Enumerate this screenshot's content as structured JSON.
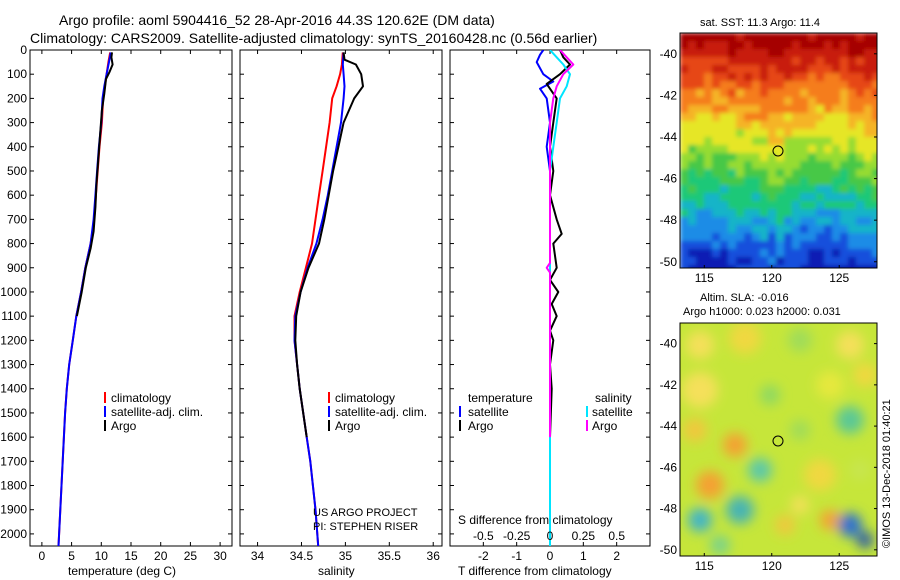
{
  "figure": {
    "title_line1": "Argo profile: aoml 5904416_52 28-Apr-2016 44.3S 120.62E (DM data)",
    "title_line2": "Climatology: CARS2009. Satellite-adjusted climatology: synTS_20160428.nc (0.56d earlier)",
    "credit_line1": "US ARGO PROJECT",
    "credit_line2": "PI: STEPHEN RISER",
    "footer_right": "©IMOS 13-Dec-2018 01:40:21"
  },
  "colors": {
    "climatology": "#ff0000",
    "satellite": "#0000ff",
    "argo": "#000000",
    "sal_satellite": "#00e5ff",
    "sal_argo": "#ff00ff"
  },
  "chart_data": [
    {
      "type": "line",
      "xlabel": "temperature (deg C)",
      "xlim": [
        -2,
        32
      ],
      "xticks": [
        0,
        5,
        10,
        15,
        20,
        25,
        30
      ],
      "xtick_labels": [
        "0",
        "5",
        "10",
        "15",
        "20",
        "25",
        "30"
      ],
      "ylim": [
        2050,
        0
      ],
      "yticks": [
        0,
        100,
        200,
        300,
        400,
        500,
        600,
        700,
        800,
        900,
        1000,
        1100,
        1200,
        1300,
        1400,
        1500,
        1600,
        1700,
        1800,
        1900,
        2000
      ],
      "legend": [
        "climatology",
        "satellite-adj. clim.",
        "Argo"
      ],
      "series": [
        {
          "name": "climatology",
          "color": "#ff0000",
          "points": [
            [
              11.5,
              10
            ],
            [
              11.2,
              50
            ],
            [
              10.9,
              100
            ],
            [
              10.6,
              150
            ],
            [
              10.3,
              200
            ],
            [
              10.1,
              300
            ],
            [
              9.7,
              400
            ],
            [
              9.4,
              500
            ],
            [
              9.1,
              600
            ],
            [
              8.8,
              700
            ],
            [
              8.2,
              800
            ],
            [
              7.3,
              900
            ],
            [
              6.6,
              1000
            ],
            [
              5.8,
              1100
            ],
            [
              5.2,
              1200
            ],
            [
              4.6,
              1300
            ],
            [
              4.2,
              1400
            ],
            [
              3.9,
              1500
            ],
            [
              3.7,
              1600
            ],
            [
              3.5,
              1700
            ],
            [
              3.3,
              1800
            ],
            [
              3.1,
              1900
            ],
            [
              2.9,
              2000
            ],
            [
              2.8,
              2050
            ]
          ]
        },
        {
          "name": "satellite-adj. clim.",
          "color": "#0000ff",
          "points": [
            [
              11.6,
              10
            ],
            [
              11.3,
              50
            ],
            [
              10.9,
              100
            ],
            [
              10.5,
              150
            ],
            [
              10.2,
              200
            ],
            [
              10.0,
              300
            ],
            [
              9.6,
              400
            ],
            [
              9.3,
              500
            ],
            [
              9.0,
              600
            ],
            [
              8.7,
              700
            ],
            [
              8.2,
              800
            ],
            [
              7.3,
              900
            ],
            [
              6.6,
              1000
            ],
            [
              5.8,
              1100
            ],
            [
              5.2,
              1200
            ],
            [
              4.6,
              1300
            ],
            [
              4.2,
              1400
            ],
            [
              3.9,
              1500
            ],
            [
              3.7,
              1600
            ],
            [
              3.5,
              1700
            ],
            [
              3.3,
              1800
            ],
            [
              3.1,
              1900
            ],
            [
              2.9,
              2000
            ],
            [
              2.8,
              2050
            ]
          ]
        },
        {
          "name": "Argo",
          "color": "#000000",
          "points": [
            [
              11.8,
              10
            ],
            [
              11.7,
              30
            ],
            [
              11.9,
              60
            ],
            [
              11.4,
              90
            ],
            [
              10.8,
              120
            ],
            [
              10.5,
              180
            ],
            [
              10.1,
              250
            ],
            [
              9.8,
              350
            ],
            [
              9.5,
              450
            ],
            [
              9.2,
              550
            ],
            [
              9.0,
              650
            ],
            [
              8.7,
              750
            ],
            [
              8.2,
              820
            ],
            [
              7.4,
              900
            ],
            [
              6.7,
              1000
            ],
            [
              5.9,
              1100
            ]
          ]
        }
      ]
    },
    {
      "type": "line",
      "xlabel": "salinity",
      "xlim": [
        33.8,
        36.1
      ],
      "xticks": [
        34,
        34.5,
        35,
        35.5,
        36
      ],
      "xtick_labels": [
        "34",
        "34.5",
        "35",
        "35.5",
        "36"
      ],
      "ylim": [
        2050,
        0
      ],
      "legend": [
        "climatology",
        "satellite-adj. clim.",
        "Argo"
      ],
      "series": [
        {
          "name": "climatology",
          "color": "#ff0000",
          "points": [
            [
              34.97,
              10
            ],
            [
              34.96,
              60
            ],
            [
              34.94,
              100
            ],
            [
              34.9,
              150
            ],
            [
              34.85,
              200
            ],
            [
              34.82,
              300
            ],
            [
              34.78,
              400
            ],
            [
              34.74,
              500
            ],
            [
              34.7,
              600
            ],
            [
              34.66,
              700
            ],
            [
              34.62,
              800
            ],
            [
              34.55,
              900
            ],
            [
              34.48,
              1000
            ],
            [
              34.42,
              1100
            ],
            [
              34.42,
              1200
            ],
            [
              34.45,
              1300
            ],
            [
              34.48,
              1400
            ],
            [
              34.52,
              1500
            ],
            [
              34.56,
              1600
            ],
            [
              34.6,
              1700
            ],
            [
              34.63,
              1800
            ],
            [
              34.66,
              1900
            ],
            [
              34.68,
              2000
            ],
            [
              34.69,
              2050
            ]
          ]
        },
        {
          "name": "satellite-adj. clim.",
          "color": "#0000ff",
          "points": [
            [
              34.98,
              10
            ],
            [
              34.97,
              60
            ],
            [
              34.98,
              100
            ],
            [
              34.99,
              150
            ],
            [
              34.98,
              200
            ],
            [
              34.95,
              300
            ],
            [
              34.9,
              400
            ],
            [
              34.85,
              500
            ],
            [
              34.8,
              600
            ],
            [
              34.74,
              700
            ],
            [
              34.67,
              800
            ],
            [
              34.57,
              900
            ],
            [
              34.49,
              1000
            ],
            [
              34.43,
              1100
            ],
            [
              34.42,
              1200
            ],
            [
              34.45,
              1300
            ],
            [
              34.48,
              1400
            ],
            [
              34.52,
              1500
            ],
            [
              34.56,
              1600
            ],
            [
              34.6,
              1700
            ],
            [
              34.63,
              1800
            ],
            [
              34.66,
              1900
            ],
            [
              34.68,
              2000
            ],
            [
              34.69,
              2050
            ]
          ]
        },
        {
          "name": "Argo",
          "color": "#000000",
          "points": [
            [
              34.98,
              10
            ],
            [
              34.99,
              40
            ],
            [
              35.12,
              60
            ],
            [
              35.18,
              100
            ],
            [
              35.2,
              150
            ],
            [
              35.1,
              200
            ],
            [
              34.98,
              300
            ],
            [
              34.92,
              400
            ],
            [
              34.86,
              500
            ],
            [
              34.81,
              600
            ],
            [
              34.76,
              700
            ],
            [
              34.7,
              800
            ],
            [
              34.58,
              900
            ],
            [
              34.49,
              1000
            ],
            [
              34.44,
              1100
            ],
            [
              34.43,
              1200
            ],
            [
              34.45,
              1300
            ],
            [
              34.48,
              1400
            ],
            [
              34.52,
              1500
            ],
            [
              34.56,
              1600
            ]
          ]
        }
      ]
    },
    {
      "type": "line",
      "xlabel": "T difference from climatology",
      "xlabel_top": "S difference from climatology",
      "xlim": [
        -3,
        3
      ],
      "xticks": [
        -2,
        -1,
        0,
        1,
        2
      ],
      "xtick_labels": [
        "-2",
        "-1",
        "0",
        "1",
        "2"
      ],
      "s_ticks": [
        -0.5,
        -0.25,
        0,
        0.25,
        0.5
      ],
      "s_tick_labels": [
        "-0.5",
        "-0.25",
        "0",
        "0.25",
        "0.5"
      ],
      "ylim": [
        2050,
        0
      ],
      "legend_left_title": "temperature",
      "legend_right_title": "salinity",
      "legend_left": [
        "satellite",
        "Argo"
      ],
      "legend_right": [
        "satellite",
        "Argo"
      ],
      "series": [
        {
          "name": "satellite",
          "color": "#0000ff",
          "points": [
            [
              -0.2,
              0
            ],
            [
              -0.3,
              20
            ],
            [
              -0.4,
              50
            ],
            [
              -0.2,
              100
            ],
            [
              0.1,
              130
            ],
            [
              -0.3,
              160
            ],
            [
              -0.1,
              200
            ],
            [
              0.0,
              300
            ],
            [
              -0.1,
              400
            ],
            [
              0.0,
              500
            ],
            [
              0.0,
              600
            ],
            [
              0.0,
              1000
            ],
            [
              0.0,
              1500
            ],
            [
              0.0,
              2050
            ]
          ]
        },
        {
          "name": "Argo",
          "color": "#000000",
          "points": [
            [
              0.3,
              0
            ],
            [
              0.4,
              30
            ],
            [
              0.6,
              60
            ],
            [
              0.3,
              100
            ],
            [
              -0.1,
              140
            ],
            [
              0.2,
              200
            ],
            [
              0.1,
              300
            ],
            [
              0.0,
              400
            ],
            [
              0.1,
              500
            ],
            [
              0.0,
              600
            ],
            [
              0.2,
              700
            ],
            [
              0.35,
              760
            ],
            [
              0.1,
              800
            ],
            [
              0.2,
              900
            ],
            [
              0.0,
              950
            ],
            [
              0.25,
              1000
            ],
            [
              0.05,
              1050
            ],
            [
              0.2,
              1100
            ],
            [
              0.0,
              1160
            ],
            [
              0.1,
              1200
            ],
            [
              0.0,
              1300
            ],
            [
              0.05,
              1400
            ],
            [
              0.0,
              1600
            ]
          ]
        },
        {
          "name": "satellite",
          "color": "#00e5ff",
          "points": [
            [
              0.0,
              0
            ],
            [
              0.2,
              30
            ],
            [
              0.4,
              60
            ],
            [
              0.6,
              100
            ],
            [
              0.5,
              150
            ],
            [
              0.3,
              200
            ],
            [
              0.2,
              300
            ],
            [
              0.1,
              400
            ],
            [
              0.0,
              500
            ],
            [
              0.0,
              800
            ],
            [
              0.0,
              2050
            ]
          ]
        },
        {
          "name": "Argo",
          "color": "#ff00ff",
          "points": [
            [
              0.3,
              0
            ],
            [
              0.5,
              30
            ],
            [
              0.7,
              60
            ],
            [
              0.4,
              100
            ],
            [
              0.2,
              150
            ],
            [
              0.1,
              200
            ],
            [
              0.0,
              300
            ],
            [
              0.0,
              880
            ],
            [
              -0.1,
              900
            ],
            [
              0.0,
              920
            ],
            [
              0.0,
              1600
            ]
          ]
        }
      ]
    },
    {
      "type": "heatmap",
      "title": "sat. SST: 11.3 Argo: 11.4",
      "xticks": [
        115,
        120,
        125
      ],
      "xtick_labels": [
        "115",
        "120",
        "125"
      ],
      "yticks": [
        -40,
        -42,
        -44,
        -46,
        -48,
        -50
      ],
      "ytick_labels": [
        "-40",
        "-42",
        "-44",
        "-46",
        "-48",
        "-50"
      ],
      "marker": {
        "lon": 120.62,
        "lat": -44.3
      }
    },
    {
      "type": "heatmap",
      "title_line1": "Altim. SLA: -0.016",
      "title_line2": "Argo h1000: 0.023 h2000: 0.031",
      "xticks": [
        115,
        120,
        125
      ],
      "xtick_labels": [
        "115",
        "120",
        "125"
      ],
      "yticks": [
        -40,
        -42,
        -44,
        -46,
        -48,
        -50
      ],
      "ytick_labels": [
        "-40",
        "-42",
        "-44",
        "-46",
        "-48",
        "-50"
      ],
      "marker": {
        "lon": 120.62,
        "lat": -44.3
      }
    }
  ]
}
